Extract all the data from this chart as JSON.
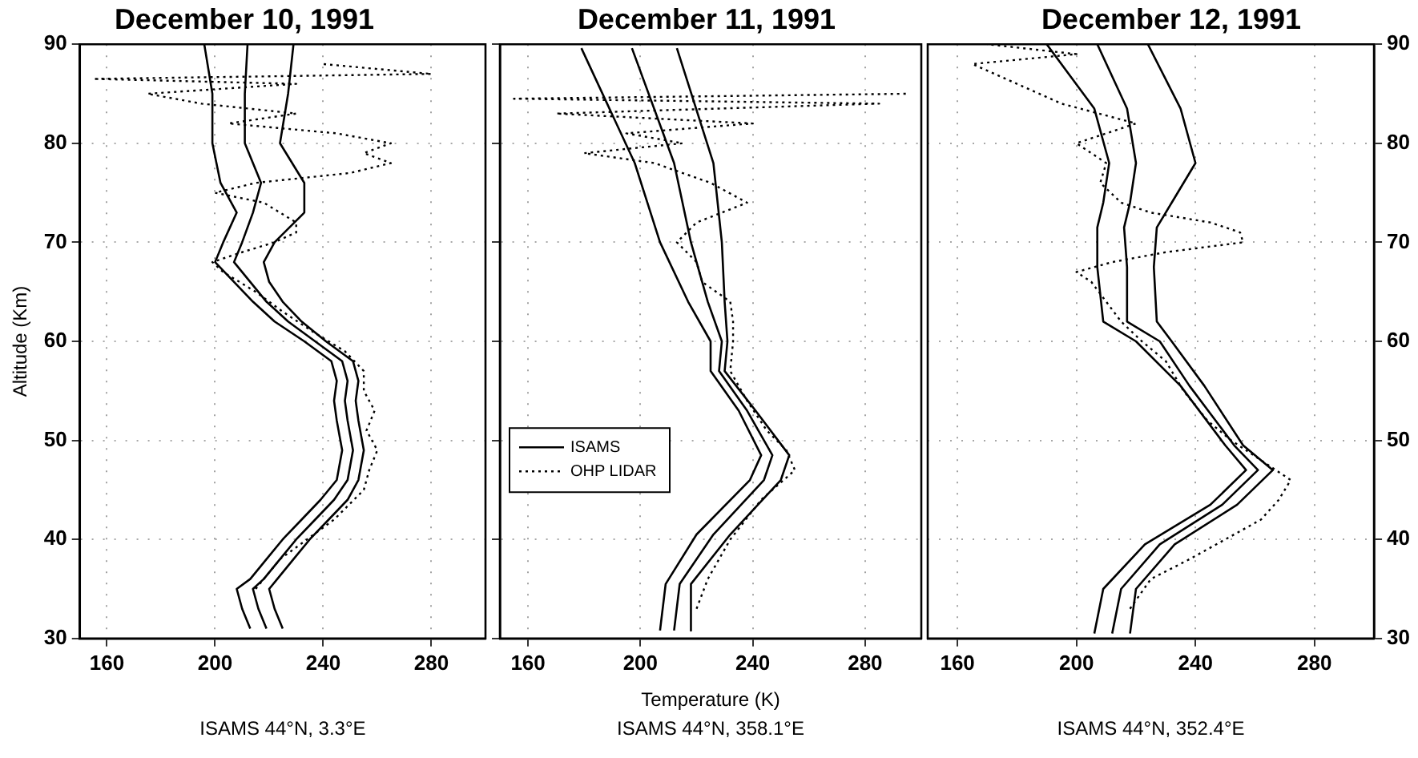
{
  "chart_data": [
    {
      "type": "line",
      "title": "December 10, 1991",
      "ylabel": "Altitude (Km)",
      "annotations": [
        "ISAMS 44°N, 3.3°E"
      ],
      "xlim": [
        150,
        300
      ],
      "xticks": [
        160,
        200,
        240,
        280
      ],
      "ylim": [
        30,
        90
      ],
      "yticks": [
        30,
        40,
        50,
        60,
        70,
        80,
        90
      ],
      "grid": true,
      "legend": false,
      "series": [
        {
          "color": "#000000",
          "line_style": "solid",
          "x": [
            212,
            211,
            211,
            217,
            214,
            210,
            207,
            213,
            219,
            227,
            237,
            247,
            249,
            248,
            249,
            251,
            249,
            244,
            237,
            230,
            224,
            218,
            214,
            216,
            219
          ],
          "values": [
            90,
            85,
            80,
            76,
            73,
            70,
            68,
            66,
            64,
            62,
            60,
            58,
            56,
            54,
            52,
            49,
            46,
            44,
            42,
            40,
            38,
            36,
            35,
            33,
            31
          ]
        },
        {
          "color": "#000000",
          "line_style": "solid",
          "x": [
            196,
            199,
            199,
            202,
            208,
            203,
            200,
            207,
            214,
            222,
            233,
            243,
            245,
            244,
            245,
            247,
            245,
            239,
            232,
            225,
            219,
            213,
            208,
            210,
            213
          ],
          "values": [
            90,
            85,
            80,
            76,
            73,
            70,
            68,
            66,
            64,
            62,
            60,
            58,
            56,
            54,
            52,
            49,
            46,
            44,
            42,
            40,
            38,
            36,
            35,
            33,
            31
          ]
        },
        {
          "color": "#000000",
          "line_style": "solid",
          "x": [
            229,
            227,
            224,
            233,
            233,
            222,
            218,
            220,
            225,
            232,
            241,
            251,
            253,
            252,
            253,
            255,
            253,
            249,
            242,
            235,
            229,
            223,
            220,
            222,
            225
          ],
          "values": [
            90,
            85,
            80,
            76,
            73,
            70,
            68,
            66,
            64,
            62,
            60,
            58,
            56,
            54,
            52,
            49,
            46,
            44,
            42,
            40,
            38,
            36,
            35,
            33,
            31
          ]
        },
        {
          "color": "#000000",
          "line_style": "dotted",
          "x": [
            215,
            224,
            234,
            244,
            255,
            257,
            260,
            256,
            259,
            255,
            255,
            248,
            236,
            225,
            215,
            203,
            199,
            210,
            222,
            230,
            230,
            218,
            200,
            215,
            250,
            265,
            255,
            265,
            245,
            205,
            230,
            195,
            175,
            230,
            155,
            280,
            240
          ],
          "values": [
            35,
            38,
            40,
            42,
            45,
            47,
            49,
            51,
            53,
            55,
            57,
            59,
            61,
            63,
            65,
            67,
            68,
            69,
            70,
            71,
            72,
            74,
            75,
            76,
            77,
            78,
            79,
            80,
            81,
            82,
            83,
            84,
            85,
            86,
            86.5,
            87,
            88
          ]
        }
      ]
    },
    {
      "type": "line",
      "title": "December 11, 1991",
      "xlabel": "Temperature (K)",
      "annotations": [
        "ISAMS 44°N, 358.1°E"
      ],
      "xlim": [
        150,
        300
      ],
      "xticks": [
        160,
        200,
        240,
        280
      ],
      "ylim": [
        30,
        90
      ],
      "yticks": [
        30,
        40,
        50,
        60,
        70,
        80,
        90
      ],
      "grid": true,
      "legend": "left",
      "tick_labels": "x",
      "series": [
        {
          "name": "ISAMS",
          "color": "#000000",
          "line_style": "solid",
          "x": [
            197,
            212,
            218,
            224,
            229,
            228,
            238,
            247,
            244,
            226,
            214,
            212
          ],
          "values": [
            89.6,
            78,
            70,
            64,
            60,
            57,
            53,
            48.5,
            46,
            40.5,
            35.5,
            30.8
          ]
        },
        {
          "color": "#000000",
          "line_style": "solid",
          "x": [
            179,
            198,
            207,
            217,
            225,
            225,
            235,
            243,
            239,
            220,
            209,
            207
          ],
          "values": [
            89.6,
            78,
            70,
            64,
            60,
            57,
            53,
            48.5,
            46,
            40.5,
            35.5,
            30.8
          ]
        },
        {
          "color": "#000000",
          "line_style": "solid",
          "x": [
            213,
            226,
            229,
            230,
            231,
            230,
            241,
            253,
            250,
            232,
            218,
            218
          ],
          "values": [
            89.6,
            78,
            70,
            64,
            60,
            57,
            53,
            48.5,
            46,
            40.5,
            35.5,
            30.8
          ]
        },
        {
          "name": "OHP LIDAR",
          "color": "#000000",
          "line_style": "dotted",
          "x": [
            220,
            224,
            232,
            243,
            255,
            252,
            245,
            238,
            232,
            233,
            233,
            232,
            222,
            220,
            213,
            220,
            238,
            225,
            205,
            180,
            215,
            195,
            240,
            170,
            285,
            155,
            295
          ],
          "values": [
            33,
            36,
            40,
            44,
            47,
            49,
            51,
            54,
            57,
            60,
            62,
            64,
            66,
            68,
            70,
            72,
            74,
            76,
            78,
            79,
            80,
            81,
            82,
            83,
            84,
            84.5,
            85
          ]
        }
      ]
    },
    {
      "type": "line",
      "title": "December 12, 1991",
      "annotations": [
        "ISAMS 44°N, 352.4°E"
      ],
      "xlim": [
        150,
        300
      ],
      "xticks": [
        160,
        200,
        240,
        280
      ],
      "y2lim": [
        30,
        90
      ],
      "y2ticks": [
        30,
        40,
        50,
        60,
        70,
        80,
        90
      ],
      "grid": true,
      "legend": false,
      "series": [
        {
          "color": "#000000",
          "line_style": "solid",
          "axis": "y2",
          "x": [
            207,
            217,
            220,
            218,
            216,
            217,
            217,
            228,
            238,
            253,
            261,
            249,
            228,
            215,
            212
          ],
          "values": [
            90,
            83.5,
            78,
            74,
            71.5,
            67.5,
            62,
            60,
            55.5,
            49.5,
            47,
            43.5,
            39.5,
            35,
            30.5
          ]
        },
        {
          "color": "#000000",
          "line_style": "solid",
          "axis": "y2",
          "x": [
            190,
            206,
            211,
            209,
            207,
            207,
            209,
            220,
            235,
            250,
            257,
            245,
            223,
            209,
            206
          ],
          "values": [
            90,
            83.5,
            78,
            74,
            71.5,
            67.5,
            62,
            60,
            55.5,
            49.5,
            47,
            43.5,
            39.5,
            35,
            30.5
          ]
        },
        {
          "color": "#000000",
          "line_style": "solid",
          "axis": "y2",
          "x": [
            224,
            235,
            240,
            232,
            227,
            226,
            227,
            232,
            243,
            256,
            266,
            254,
            233,
            220,
            218
          ],
          "values": [
            90,
            83.5,
            78,
            74,
            71.5,
            67.5,
            62,
            60,
            55.5,
            49.5,
            47,
            43.5,
            39.5,
            35,
            30.5
          ]
        },
        {
          "color": "#000000",
          "line_style": "dotted",
          "axis": "y2",
          "x": [
            218,
            225,
            238,
            250,
            262,
            268,
            272,
            262,
            252,
            244,
            236,
            230,
            222,
            215,
            210,
            205,
            200,
            212,
            230,
            256,
            255,
            245,
            225,
            215,
            208,
            210,
            200,
            220,
            195,
            180,
            165,
            200,
            170
          ],
          "values": [
            33,
            36,
            38,
            40,
            42,
            44,
            46,
            48,
            50,
            52,
            55,
            58,
            60,
            62,
            64,
            66,
            67,
            68,
            69,
            70,
            71,
            72,
            73,
            74,
            76,
            78,
            80,
            82,
            84,
            86,
            88,
            89,
            90
          ]
        }
      ]
    }
  ]
}
